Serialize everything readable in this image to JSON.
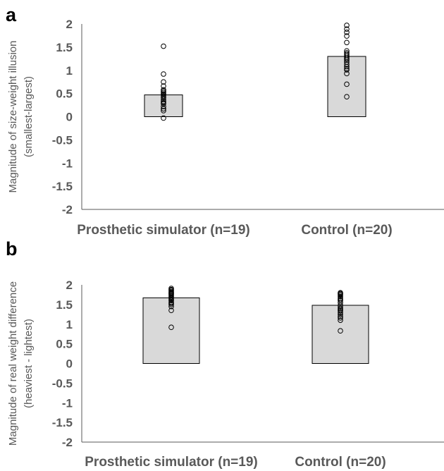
{
  "chart_data": [
    {
      "panel_label": "a",
      "type": "bar",
      "categories": [
        "Prosthetic simulator (n=19)",
        "Control (n=20)"
      ],
      "values": [
        0.47,
        1.3
      ],
      "points": [
        [
          -0.03,
          0.13,
          0.17,
          0.22,
          0.28,
          0.3,
          0.33,
          0.37,
          0.41,
          0.44,
          0.47,
          0.49,
          0.52,
          0.55,
          0.58,
          0.66,
          0.75,
          0.92,
          1.52
        ],
        [
          0.43,
          0.7,
          0.93,
          1.01,
          1.04,
          1.08,
          1.13,
          1.18,
          1.22,
          1.25,
          1.28,
          1.32,
          1.35,
          1.38,
          1.42,
          1.6,
          1.74,
          1.82,
          1.89,
          1.97
        ]
      ],
      "ylabel": [
        "Magnitude of size-weight illusion",
        "(smallest-largest)"
      ],
      "ylim": [
        -2,
        2
      ],
      "yticks": [
        2,
        1.5,
        1,
        0.5,
        0,
        -0.5,
        -1,
        -1.5,
        -2
      ],
      "ytick_labels": [
        "2",
        "1.5",
        "1",
        "0.5",
        "0",
        "-0.5",
        "-1",
        "-1.5",
        "-2"
      ],
      "grid": false,
      "bar_color": "#d9d9d9",
      "point_color": "#000000"
    },
    {
      "panel_label": "b",
      "type": "bar",
      "categories": [
        "Prosthetic simulator (n=19)",
        "Control (n=20)"
      ],
      "values": [
        1.67,
        1.48
      ],
      "points": [
        [
          0.92,
          1.35,
          1.45,
          1.5,
          1.53,
          1.56,
          1.6,
          1.63,
          1.66,
          1.69,
          1.72,
          1.75,
          1.77,
          1.79,
          1.81,
          1.83,
          1.86,
          1.88,
          1.91
        ],
        [
          0.83,
          1.1,
          1.16,
          1.2,
          1.25,
          1.3,
          1.34,
          1.37,
          1.4,
          1.44,
          1.48,
          1.55,
          1.6,
          1.63,
          1.66,
          1.7,
          1.73,
          1.76,
          1.78,
          1.8
        ]
      ],
      "ylabel": [
        "Magnitude of real weight difference",
        "(heaviest - lightest)"
      ],
      "ylim": [
        -2,
        2
      ],
      "yticks": [
        2,
        1.5,
        1,
        0.5,
        0,
        -0.5,
        -1,
        -1.5,
        -2
      ],
      "ytick_labels": [
        "2",
        "1.5",
        "1",
        "0.5",
        "0",
        "-0.5",
        "-1",
        "-1.5",
        "-2"
      ],
      "grid": false,
      "bar_color": "#d9d9d9",
      "point_color": "#000000"
    }
  ]
}
